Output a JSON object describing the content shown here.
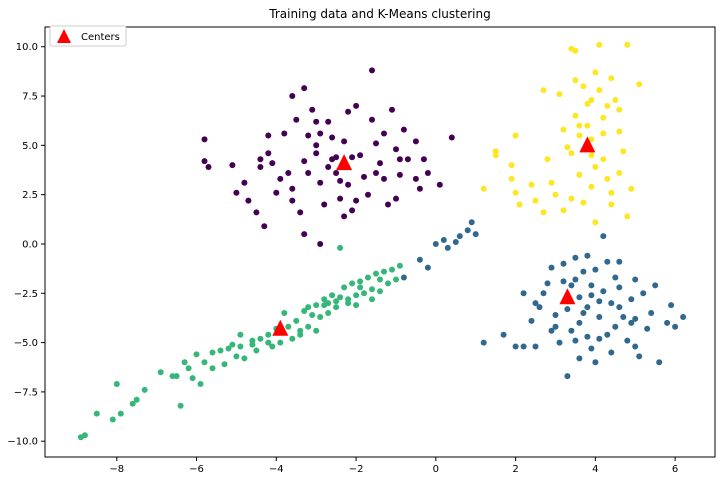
{
  "chart_data": {
    "type": "scatter",
    "title": "Training data and K-Means clustering",
    "xlabel": "",
    "ylabel": "",
    "xlim": [
      -9.8,
      7.0
    ],
    "ylim": [
      -10.8,
      11.0
    ],
    "xticks": [
      -8,
      -6,
      -4,
      -2,
      0,
      2,
      4,
      6
    ],
    "yticks": [
      -10.0,
      -7.5,
      -5.0,
      -2.5,
      0.0,
      2.5,
      5.0,
      7.5,
      10.0
    ],
    "xtick_labels": [
      "−8",
      "−6",
      "−4",
      "−2",
      "0",
      "2",
      "4",
      "6"
    ],
    "ytick_labels": [
      "−10.0",
      "−7.5",
      "−5.0",
      "−2.5",
      "0.0",
      "2.5",
      "5.0",
      "7.5",
      "10.0"
    ],
    "grid": false,
    "legend_position": "top-left",
    "legend": [
      {
        "label": "Centers",
        "marker": "triangle",
        "color": "#ff0000"
      }
    ],
    "colors": {
      "cluster_purple": "#440154",
      "cluster_blue": "#31688e",
      "cluster_green": "#35b779",
      "cluster_yellow": "#fde725",
      "centers": "#ff0000"
    },
    "centers": [
      {
        "x": -2.3,
        "y": 4.1
      },
      {
        "x": 3.8,
        "y": 5.0
      },
      {
        "x": 3.3,
        "y": -2.7
      },
      {
        "x": -3.9,
        "y": -4.3
      }
    ],
    "series": [
      {
        "color_key": "cluster_purple",
        "points": [
          [
            -5.8,
            5.3
          ],
          [
            -5.8,
            4.2
          ],
          [
            -5.7,
            3.9
          ],
          [
            -5.1,
            4.0
          ],
          [
            -5.0,
            2.6
          ],
          [
            -4.8,
            3.1
          ],
          [
            -4.7,
            2.2
          ],
          [
            -4.5,
            1.6
          ],
          [
            -4.3,
            0.9
          ],
          [
            -4.4,
            3.9
          ],
          [
            -4.4,
            4.3
          ],
          [
            -4.2,
            4.6
          ],
          [
            -4.2,
            5.5
          ],
          [
            -4.1,
            4.1
          ],
          [
            -4.0,
            2.6
          ],
          [
            -3.9,
            3.3
          ],
          [
            -3.8,
            5.6
          ],
          [
            -3.6,
            2.8
          ],
          [
            -3.6,
            2.2
          ],
          [
            -3.4,
            1.6
          ],
          [
            -3.2,
            3.6
          ],
          [
            -3.3,
            4.2
          ],
          [
            -3.6,
            7.5
          ],
          [
            -3.5,
            6.3
          ],
          [
            -3.3,
            7.9
          ],
          [
            -3.1,
            6.8
          ],
          [
            -3.0,
            6.2
          ],
          [
            -3.0,
            5.0
          ],
          [
            -2.9,
            3.1
          ],
          [
            -2.8,
            2.0
          ],
          [
            -2.7,
            6.2
          ],
          [
            -2.6,
            5.4
          ],
          [
            -2.5,
            4.4
          ],
          [
            -2.5,
            3.6
          ],
          [
            -2.4,
            2.3
          ],
          [
            -2.3,
            1.4
          ],
          [
            -2.2,
            6.7
          ],
          [
            -2.2,
            3.0
          ],
          [
            -2.1,
            1.7
          ],
          [
            -2.0,
            2.2
          ],
          [
            -1.9,
            4.5
          ],
          [
            -1.8,
            3.4
          ],
          [
            -1.7,
            2.5
          ],
          [
            -1.6,
            6.3
          ],
          [
            -1.5,
            5.1
          ],
          [
            -1.4,
            4.1
          ],
          [
            -1.3,
            3.3
          ],
          [
            -1.2,
            2.0
          ],
          [
            -1.1,
            6.8
          ],
          [
            -1.0,
            4.8
          ],
          [
            -0.9,
            3.5
          ],
          [
            -0.8,
            5.8
          ],
          [
            -0.7,
            4.3
          ],
          [
            -0.5,
            3.3
          ],
          [
            -0.4,
            2.8
          ],
          [
            -0.5,
            5.2
          ],
          [
            -0.3,
            4.3
          ],
          [
            -0.2,
            3.6
          ],
          [
            0.1,
            3.0
          ],
          [
            0.4,
            5.4
          ],
          [
            -2.6,
            4.3
          ],
          [
            -2.3,
            5.2
          ],
          [
            -2.0,
            7.0
          ],
          [
            -1.6,
            8.8
          ],
          [
            -2.9,
            5.6
          ],
          [
            -3.2,
            5.5
          ],
          [
            -2.4,
            3.2
          ],
          [
            -3.7,
            3.6
          ],
          [
            -3.3,
            0.5
          ],
          [
            -2.9,
            0.0
          ],
          [
            -1.0,
            2.3
          ],
          [
            -1.3,
            5.6
          ],
          [
            -0.9,
            4.3
          ],
          [
            -3.0,
            4.6
          ],
          [
            -2.7,
            3.9
          ],
          [
            -1.5,
            3.6
          ],
          [
            -2.1,
            4.4
          ]
        ]
      },
      {
        "color_key": "cluster_yellow",
        "points": [
          [
            1.2,
            2.8
          ],
          [
            1.5,
            4.7
          ],
          [
            1.5,
            4.5
          ],
          [
            1.9,
            4.0
          ],
          [
            1.9,
            3.3
          ],
          [
            2.0,
            2.6
          ],
          [
            2.1,
            2.0
          ],
          [
            2.0,
            5.5
          ],
          [
            2.4,
            3.0
          ],
          [
            2.5,
            2.2
          ],
          [
            2.7,
            7.8
          ],
          [
            2.8,
            4.3
          ],
          [
            2.9,
            3.1
          ],
          [
            3.0,
            2.5
          ],
          [
            3.1,
            7.6
          ],
          [
            3.2,
            5.8
          ],
          [
            3.3,
            4.9
          ],
          [
            3.4,
            9.9
          ],
          [
            3.5,
            9.8
          ],
          [
            3.5,
            8.3
          ],
          [
            3.5,
            6.5
          ],
          [
            3.6,
            5.5
          ],
          [
            3.6,
            3.5
          ],
          [
            3.7,
            2.1
          ],
          [
            3.8,
            7.1
          ],
          [
            3.8,
            6.0
          ],
          [
            3.9,
            5.3
          ],
          [
            3.9,
            4.5
          ],
          [
            4.0,
            3.9
          ],
          [
            4.0,
            8.7
          ],
          [
            4.1,
            7.8
          ],
          [
            4.1,
            10.1
          ],
          [
            4.2,
            6.4
          ],
          [
            4.2,
            5.6
          ],
          [
            4.3,
            3.3
          ],
          [
            4.4,
            2.6
          ],
          [
            4.4,
            8.4
          ],
          [
            4.5,
            7.3
          ],
          [
            4.6,
            6.8
          ],
          [
            4.6,
            5.7
          ],
          [
            4.7,
            4.7
          ],
          [
            4.8,
            10.1
          ],
          [
            4.8,
            1.4
          ],
          [
            4.9,
            2.8
          ],
          [
            5.1,
            8.1
          ],
          [
            4.4,
            2.0
          ],
          [
            3.4,
            2.3
          ],
          [
            3.2,
            1.7
          ],
          [
            2.7,
            1.6
          ],
          [
            4.0,
            1.1
          ],
          [
            3.9,
            2.9
          ],
          [
            3.6,
            6.0
          ],
          [
            4.3,
            7.0
          ],
          [
            3.7,
            8.0
          ],
          [
            3.4,
            4.6
          ],
          [
            4.6,
            3.6
          ],
          [
            4.2,
            4.3
          ],
          [
            3.9,
            7.3
          ]
        ]
      },
      {
        "color_key": "cluster_blue",
        "points": [
          [
            -0.8,
            -1.7
          ],
          [
            -0.4,
            -0.8
          ],
          [
            -0.2,
            -1.2
          ],
          [
            0.0,
            0.0
          ],
          [
            0.2,
            0.2
          ],
          [
            0.3,
            -0.2
          ],
          [
            0.5,
            0.1
          ],
          [
            0.6,
            0.4
          ],
          [
            0.8,
            0.7
          ],
          [
            0.9,
            1.1
          ],
          [
            1.0,
            0.5
          ],
          [
            1.2,
            -5.0
          ],
          [
            1.7,
            -4.6
          ],
          [
            2.0,
            -5.2
          ],
          [
            2.2,
            -2.5
          ],
          [
            2.4,
            -3.9
          ],
          [
            2.5,
            -5.2
          ],
          [
            2.6,
            -3.2
          ],
          [
            2.8,
            -2.0
          ],
          [
            2.9,
            -4.4
          ],
          [
            2.9,
            -1.2
          ],
          [
            3.0,
            -3.6
          ],
          [
            3.1,
            -5.0
          ],
          [
            3.2,
            -1.9
          ],
          [
            3.3,
            -6.7
          ],
          [
            3.3,
            -3.3
          ],
          [
            3.4,
            -2.1
          ],
          [
            3.5,
            -0.7
          ],
          [
            3.5,
            -4.9
          ],
          [
            3.6,
            -5.8
          ],
          [
            3.6,
            -2.7
          ],
          [
            3.7,
            -1.4
          ],
          [
            3.8,
            -3.2
          ],
          [
            3.8,
            -0.6
          ],
          [
            3.9,
            -2.1
          ],
          [
            3.9,
            -5.3
          ],
          [
            4.0,
            -6.0
          ],
          [
            4.0,
            -1.3
          ],
          [
            4.1,
            -3.7
          ],
          [
            4.1,
            -4.8
          ],
          [
            4.2,
            0.4
          ],
          [
            4.2,
            -2.4
          ],
          [
            4.3,
            -0.9
          ],
          [
            4.4,
            -3.0
          ],
          [
            4.4,
            -5.5
          ],
          [
            4.5,
            -1.7
          ],
          [
            4.5,
            -4.2
          ],
          [
            4.6,
            -2.2
          ],
          [
            4.6,
            -0.9
          ],
          [
            4.7,
            -3.7
          ],
          [
            4.8,
            -4.9
          ],
          [
            4.9,
            -2.8
          ],
          [
            5.0,
            -3.8
          ],
          [
            5.0,
            -1.8
          ],
          [
            5.1,
            -5.7
          ],
          [
            5.2,
            -2.5
          ],
          [
            5.3,
            -4.3
          ],
          [
            5.4,
            -3.5
          ],
          [
            5.6,
            -6.0
          ],
          [
            5.8,
            -4.0
          ],
          [
            5.9,
            -3.1
          ],
          [
            6.0,
            -4.2
          ],
          [
            6.2,
            -3.7
          ],
          [
            5.5,
            -2.1
          ],
          [
            5.0,
            -5.2
          ],
          [
            3.6,
            -4.0
          ],
          [
            3.2,
            -1.0
          ],
          [
            2.7,
            -2.5
          ],
          [
            2.5,
            -3.0
          ],
          [
            2.2,
            -5.2
          ],
          [
            3.7,
            -3.5
          ],
          [
            4.3,
            -4.6
          ],
          [
            4.9,
            -4.0
          ],
          [
            3.4,
            -4.4
          ],
          [
            3.9,
            -2.6
          ],
          [
            4.6,
            -3.2
          ],
          [
            3.0,
            -4.2
          ],
          [
            4.1,
            -2.9
          ],
          [
            3.5,
            -1.8
          ],
          [
            3.8,
            -4.7
          ]
        ]
      },
      {
        "color_key": "cluster_green",
        "points": [
          [
            -8.9,
            -9.8
          ],
          [
            -8.8,
            -9.7
          ],
          [
            -8.5,
            -8.6
          ],
          [
            -8.1,
            -8.9
          ],
          [
            -8.0,
            -7.1
          ],
          [
            -7.9,
            -8.6
          ],
          [
            -7.6,
            -8.1
          ],
          [
            -7.5,
            -7.9
          ],
          [
            -7.3,
            -7.4
          ],
          [
            -6.9,
            -6.5
          ],
          [
            -6.6,
            -6.7
          ],
          [
            -6.5,
            -6.7
          ],
          [
            -6.4,
            -8.2
          ],
          [
            -6.3,
            -6.0
          ],
          [
            -6.1,
            -6.8
          ],
          [
            -6.0,
            -5.6
          ],
          [
            -5.9,
            -7.1
          ],
          [
            -5.8,
            -6.0
          ],
          [
            -5.6,
            -5.5
          ],
          [
            -5.4,
            -5.4
          ],
          [
            -5.3,
            -6.1
          ],
          [
            -5.2,
            -5.3
          ],
          [
            -5.0,
            -5.7
          ],
          [
            -4.9,
            -5.2
          ],
          [
            -4.8,
            -5.8
          ],
          [
            -4.6,
            -4.9
          ],
          [
            -4.5,
            -5.4
          ],
          [
            -4.4,
            -4.8
          ],
          [
            -4.2,
            -4.6
          ],
          [
            -4.1,
            -5.2
          ],
          [
            -4.0,
            -4.3
          ],
          [
            -3.9,
            -5.0
          ],
          [
            -3.7,
            -4.2
          ],
          [
            -3.6,
            -4.8
          ],
          [
            -3.5,
            -3.9
          ],
          [
            -3.4,
            -4.4
          ],
          [
            -3.3,
            -3.4
          ],
          [
            -3.2,
            -4.2
          ],
          [
            -3.1,
            -3.6
          ],
          [
            -3.0,
            -3.1
          ],
          [
            -2.9,
            -3.7
          ],
          [
            -2.8,
            -2.8
          ],
          [
            -2.7,
            -3.5
          ],
          [
            -2.6,
            -2.6
          ],
          [
            -2.5,
            -3.2
          ],
          [
            -2.4,
            -2.7
          ],
          [
            -2.3,
            -2.2
          ],
          [
            -2.2,
            -3.0
          ],
          [
            -2.1,
            -2.0
          ],
          [
            -2.0,
            -2.6
          ],
          [
            -1.9,
            -1.9
          ],
          [
            -1.8,
            -2.5
          ],
          [
            -1.7,
            -1.7
          ],
          [
            -1.6,
            -2.3
          ],
          [
            -1.5,
            -1.5
          ],
          [
            -1.4,
            -2.4
          ],
          [
            -1.3,
            -1.4
          ],
          [
            -1.2,
            -2.0
          ],
          [
            -1.1,
            -1.3
          ],
          [
            -1.0,
            -1.8
          ],
          [
            -0.9,
            -1.1
          ],
          [
            -2.4,
            -0.2
          ],
          [
            -3.4,
            -4.6
          ],
          [
            -2.7,
            -3.0
          ],
          [
            -2.2,
            -2.8
          ],
          [
            -1.6,
            -2.8
          ],
          [
            -4.2,
            -5.0
          ],
          [
            -5.6,
            -6.3
          ],
          [
            -3.8,
            -3.5
          ],
          [
            -4.9,
            -4.6
          ],
          [
            -3.0,
            -4.4
          ],
          [
            -2.5,
            -2.9
          ],
          [
            -1.9,
            -2.2
          ],
          [
            -1.4,
            -1.8
          ],
          [
            -3.2,
            -3.2
          ],
          [
            -4.6,
            -5.1
          ],
          [
            -5.1,
            -5.1
          ],
          [
            -6.2,
            -6.3
          ],
          [
            -2.8,
            -3.1
          ],
          [
            -2.0,
            -3.1
          ]
        ]
      }
    ]
  }
}
